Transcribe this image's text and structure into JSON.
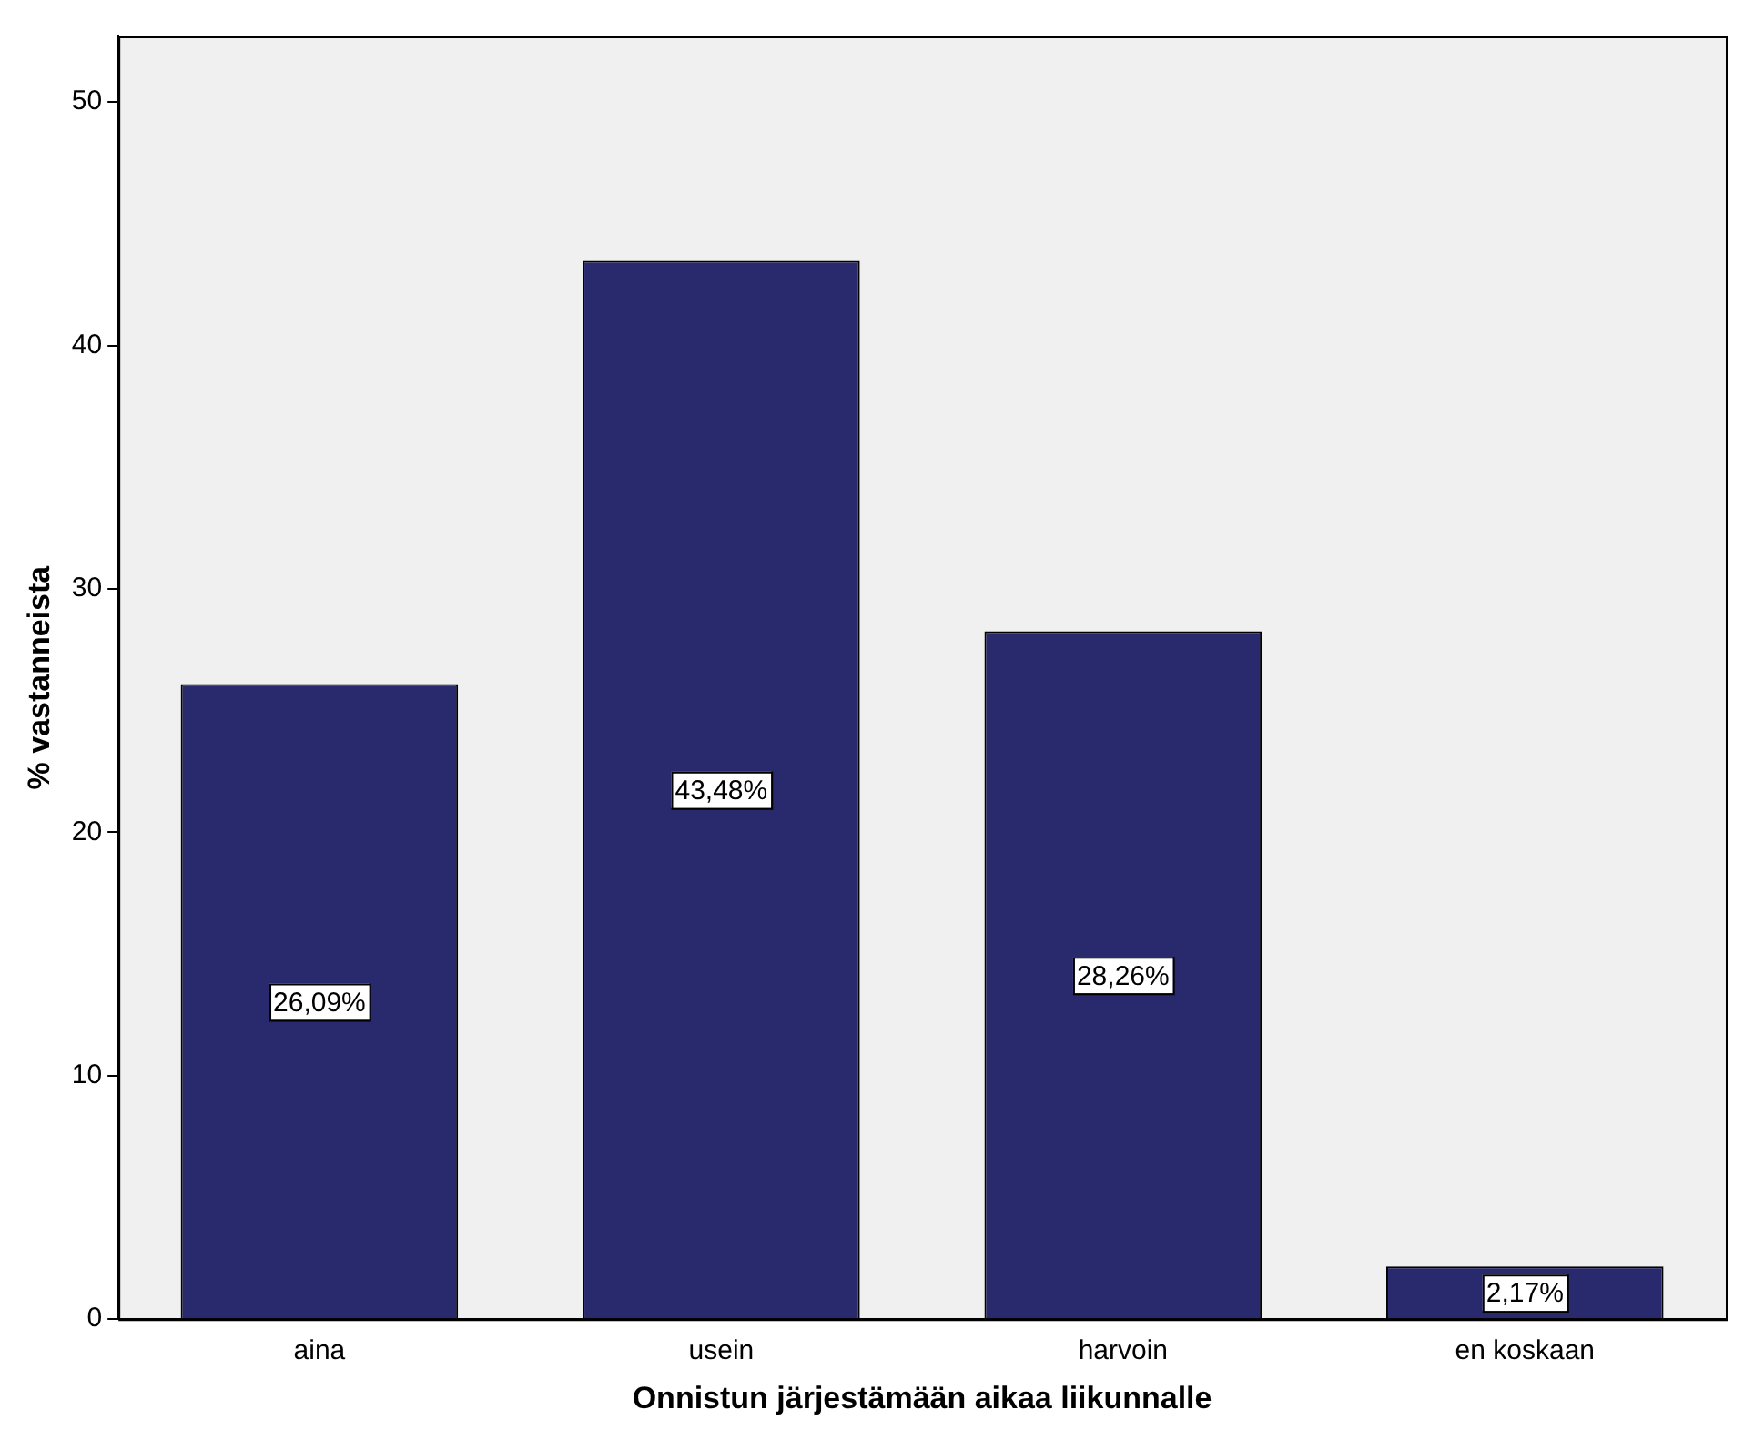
{
  "chart_data": {
    "type": "bar",
    "xlabel": "Onnistun järjestämään aikaa liikunnalle",
    "ylabel": "% vastanneista",
    "categories": [
      "aina",
      "usein",
      "harvoin",
      "en koskaan"
    ],
    "values": [
      26.09,
      43.48,
      28.26,
      2.17
    ],
    "value_labels": [
      "26,09%",
      "43,48%",
      "28,26%",
      "2,17%"
    ],
    "color": "#29296e",
    "ylim": [
      0,
      52.7
    ],
    "yticks": [
      0,
      10,
      20,
      30,
      40,
      50
    ],
    "grid": false,
    "legend": false
  }
}
